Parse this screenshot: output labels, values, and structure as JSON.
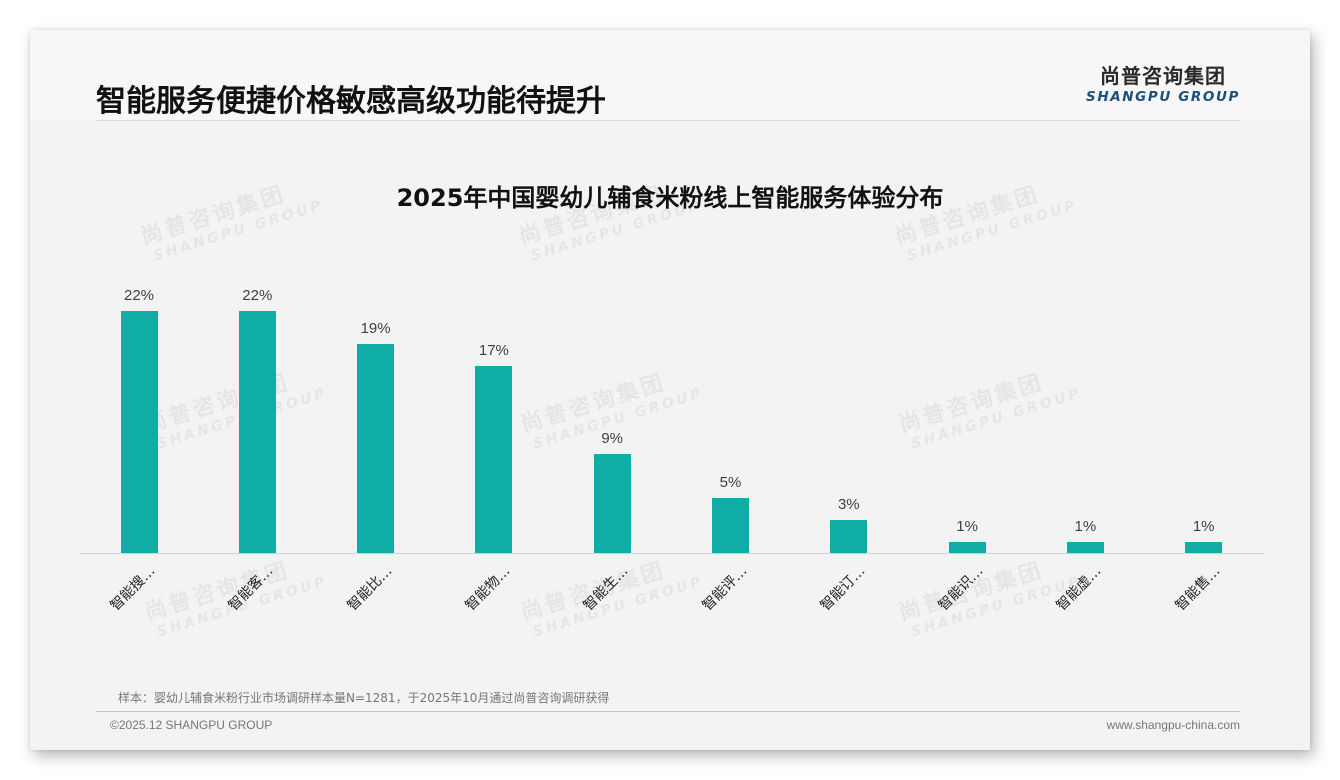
{
  "header": {
    "title": "智能服务便捷价格敏感高级功能待提升",
    "logo": {
      "cn": "尚普咨询集团",
      "en": "SHANGPU GROUP"
    }
  },
  "watermark": {
    "cn": "尚普咨询集团",
    "en": "SHANGPU GROUP"
  },
  "colors": {
    "bar": "#0fada6",
    "logo_en": "#1d4f7a",
    "footer_rule": "#b9c7d6"
  },
  "chart_data": {
    "type": "bar",
    "title": "2025年中国婴幼儿辅食米粉线上智能服务体验分布",
    "categories": [
      "智能搜…",
      "智能客…",
      "智能比…",
      "智能物…",
      "智能生…",
      "智能评…",
      "智能订…",
      "智能识…",
      "智能虚…",
      "智能售…"
    ],
    "values": [
      22,
      22,
      19,
      17,
      9,
      5,
      3,
      1,
      1,
      1
    ],
    "value_labels": [
      "22%",
      "22%",
      "19%",
      "17%",
      "9%",
      "5%",
      "3%",
      "1%",
      "1%",
      "1%"
    ],
    "unit": "%",
    "xlabel": "",
    "ylabel": "",
    "ylim": [
      0,
      22
    ],
    "grid": false,
    "legend": null,
    "x_tick_rotation": -45
  },
  "note": "样本：婴幼儿辅食米粉行业市场调研样本量N=1281，于2025年10月通过尚普咨询调研获得",
  "footer": {
    "copyright": "©2025.12 SHANGPU GROUP",
    "website": "www.shangpu-china.com"
  }
}
